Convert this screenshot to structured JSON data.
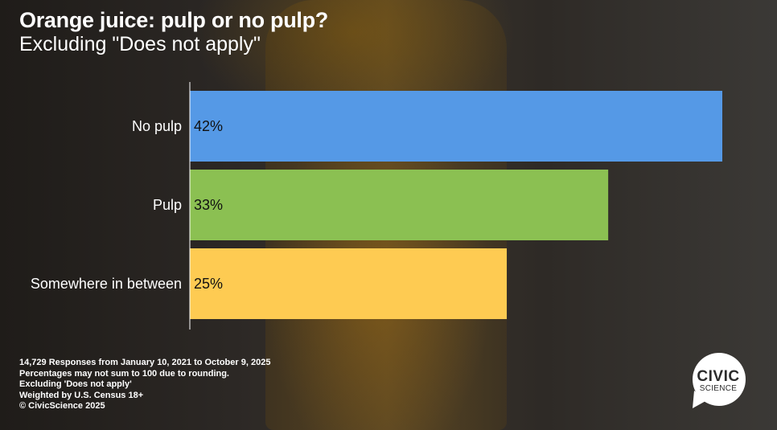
{
  "title": "Orange juice: pulp or no pulp?",
  "subtitle": "Excluding \"Does not apply\"",
  "chart_data": {
    "type": "bar",
    "orientation": "horizontal",
    "categories": [
      "No pulp",
      "Pulp",
      "Somewhere in between"
    ],
    "values": [
      42,
      33,
      25
    ],
    "value_labels": [
      "42%",
      "33%",
      "25%"
    ],
    "colors": [
      "#5599e6",
      "#8bc052",
      "#fecb52"
    ],
    "xlim": [
      0,
      44
    ],
    "grid": false,
    "legend": "none"
  },
  "footnotes": [
    "14,729 Responses from January 10, 2021 to October 9, 2025",
    "Percentages may not sum to 100 due to rounding.",
    "Excluding 'Does not apply'",
    "Weighted by U.S. Census 18+",
    "© CivicScience 2025"
  ],
  "logo": {
    "line1": "CIVIC",
    "line2": "SCIENCE"
  }
}
